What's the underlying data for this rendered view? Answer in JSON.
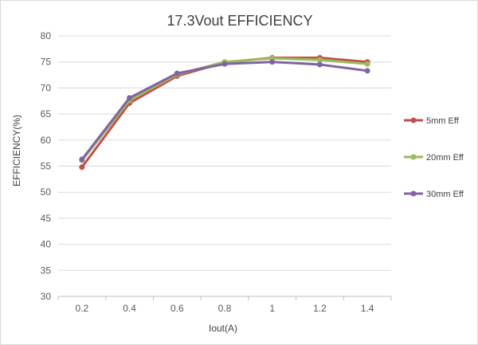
{
  "chart_data": {
    "type": "line",
    "title": "17.3Vout EFFICIENCY",
    "xlabel": "Iout(A)",
    "ylabel": "EFFICIENCY(%)",
    "x": [
      0.2,
      0.4,
      0.6,
      0.8,
      1,
      1.2,
      1.4
    ],
    "x_tick_labels": [
      "0.2",
      "0.4",
      "0.6",
      "0.8",
      "1",
      "1.2",
      "1.4"
    ],
    "ylim": [
      30,
      80
    ],
    "y_ticks": [
      30,
      35,
      40,
      45,
      50,
      55,
      60,
      65,
      70,
      75,
      80
    ],
    "grid": "horizontal",
    "legend_position": "right",
    "series": [
      {
        "name": "5mm Eff",
        "color": "#c0504d",
        "values": [
          54.8,
          67.1,
          72.3,
          74.9,
          75.8,
          75.8,
          75.0
        ]
      },
      {
        "name": "20mm Eff",
        "color": "#9bbb59",
        "values": [
          56.1,
          67.6,
          72.6,
          75.0,
          75.7,
          75.4,
          74.6
        ]
      },
      {
        "name": "30mm Eff",
        "color": "#8064a2",
        "values": [
          56.3,
          68.1,
          72.8,
          74.6,
          75.0,
          74.5,
          73.3
        ]
      }
    ]
  }
}
